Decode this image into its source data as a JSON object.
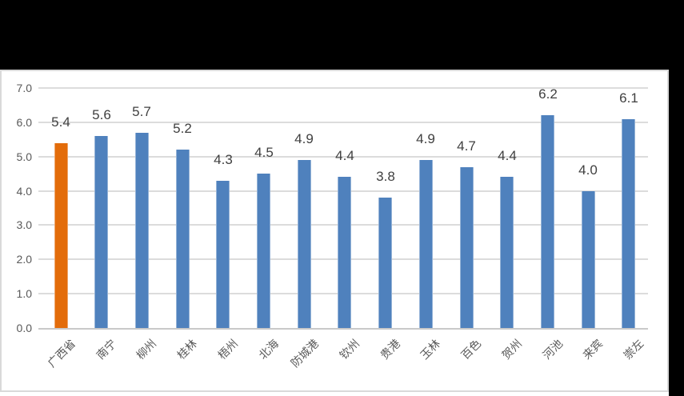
{
  "app": {
    "background_color": "#000000",
    "panel_background": "#ffffff",
    "panel_border_color": "#d9d9d9"
  },
  "chart_data": {
    "type": "bar",
    "title": "",
    "xlabel": "",
    "ylabel": "",
    "categories": [
      "广西省",
      "南宁",
      "柳州",
      "桂林",
      "梧州",
      "北海",
      "防城港",
      "钦州",
      "贵港",
      "玉林",
      "百色",
      "贺州",
      "河池",
      "来宾",
      "崇左"
    ],
    "values": [
      5.4,
      5.6,
      5.7,
      5.2,
      4.3,
      4.5,
      4.9,
      4.4,
      3.8,
      4.9,
      4.7,
      4.4,
      6.2,
      4.0,
      6.1
    ],
    "value_labels": [
      "5.4",
      "5.6",
      "5.7",
      "5.2",
      "4.3",
      "4.5",
      "4.9",
      "4.4",
      "3.8",
      "4.9",
      "4.7",
      "4.4",
      "6.2",
      "4.0",
      "6.1"
    ],
    "highlight_index": 0,
    "ylim": [
      0,
      7
    ],
    "ytick_labels": [
      "0.0",
      "1.0",
      "2.0",
      "3.0",
      "4.0",
      "5.0",
      "6.0",
      "7.0"
    ],
    "grid": true,
    "legend_position": "none",
    "colors": {
      "bar_default": "#4f81bd",
      "bar_highlight": "#e36c0a",
      "gridline": "#dcdcdc",
      "axis_line": "#c9c9c9",
      "tick_text": "#595959",
      "value_text": "#404040"
    }
  }
}
